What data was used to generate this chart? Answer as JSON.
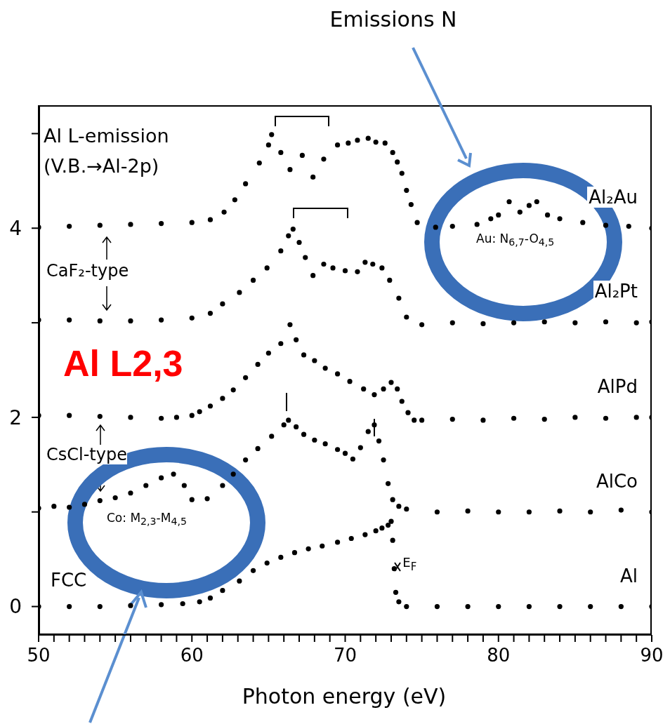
{
  "chart_data": {
    "type": "scatter",
    "xlabel": "Photon energy (eV)",
    "xlim": [
      50,
      90
    ],
    "ylim": [
      -0.3,
      5.3
    ],
    "xticks": [
      50,
      {
        "value": 51,
        "label": null
      },
      {
        "value": 52,
        "label": null
      },
      {
        "value": 53,
        "label": null
      },
      {
        "value": 54,
        "label": null
      },
      {
        "value": 55,
        "label": null
      },
      {
        "value": 56,
        "label": null
      },
      {
        "value": 57,
        "label": null
      },
      {
        "value": 58,
        "label": null
      },
      {
        "value": 59,
        "label": null
      },
      60,
      {
        "value": 61,
        "label": null
      },
      {
        "value": 62,
        "label": null
      },
      {
        "value": 63,
        "label": null
      },
      {
        "value": 64,
        "label": null
      },
      {
        "value": 65,
        "label": null
      },
      {
        "value": 66,
        "label": null
      },
      {
        "value": 67,
        "label": null
      },
      {
        "value": 68,
        "label": null
      },
      {
        "value": 69,
        "label": null
      },
      70,
      {
        "value": 71,
        "label": null
      },
      {
        "value": 72,
        "label": null
      },
      {
        "value": 73,
        "label": null
      },
      {
        "value": 74,
        "label": null
      },
      {
        "value": 75,
        "label": null
      },
      {
        "value": 76,
        "label": null
      },
      {
        "value": 77,
        "label": null
      },
      {
        "value": 78,
        "label": null
      },
      {
        "value": 79,
        "label": null
      },
      80,
      {
        "value": 81,
        "label": null
      },
      {
        "value": 82,
        "label": null
      },
      {
        "value": 83,
        "label": null
      },
      {
        "value": 84,
        "label": null
      },
      {
        "value": 85,
        "label": null
      },
      {
        "value": 86,
        "label": null
      },
      {
        "value": 87,
        "label": null
      },
      {
        "value": 88,
        "label": null
      },
      {
        "value": 89,
        "label": null
      },
      90
    ],
    "yticks": [
      0,
      {
        "value": 1,
        "label": null
      },
      2,
      {
        "value": 3,
        "label": null
      },
      4,
      {
        "value": 5,
        "label": null
      }
    ],
    "grid": false,
    "marker": "circle",
    "series": [
      {
        "name": "Al₂Au",
        "color": "#000000",
        "x": [
          50,
          52,
          54,
          56,
          58,
          60,
          61.2,
          62.1,
          62.8,
          63.5,
          64.4,
          65,
          65.2,
          65.8,
          66.4,
          67.2,
          67.9,
          68.6,
          69.5,
          70.2,
          70.8,
          71.5,
          72,
          72.6,
          73.1,
          73.4,
          73.7,
          74,
          74.3,
          74.7,
          75.9,
          77,
          78.6,
          79.5,
          80,
          80.7,
          81.4,
          82,
          82.5,
          83.2,
          84,
          85.5,
          87,
          88.5,
          90
        ],
        "values": [
          4.01,
          4.02,
          4.03,
          4.04,
          4.05,
          4.06,
          4.09,
          4.17,
          4.3,
          4.47,
          4.69,
          4.88,
          4.99,
          4.8,
          4.62,
          4.77,
          4.54,
          4.73,
          4.88,
          4.9,
          4.93,
          4.95,
          4.91,
          4.9,
          4.8,
          4.7,
          4.58,
          4.4,
          4.25,
          4.06,
          4.01,
          4.02,
          4.04,
          4.1,
          4.14,
          4.28,
          4.17,
          4.24,
          4.28,
          4.14,
          4.1,
          4.06,
          4.03,
          4.02,
          4.0
        ]
      },
      {
        "name": "Al₂Pt",
        "color": "#000000",
        "x": [
          50,
          52,
          54,
          56,
          58,
          60,
          61.2,
          62,
          63.1,
          64,
          64.9,
          65.8,
          66.3,
          66.6,
          67,
          67.4,
          67.9,
          68.6,
          69.2,
          70,
          70.8,
          71.3,
          71.8,
          72.4,
          72.9,
          73.5,
          74,
          75,
          77,
          79,
          81,
          83,
          85,
          87,
          89,
          90
        ],
        "values": [
          3.03,
          3.03,
          3.02,
          3.02,
          3.03,
          3.05,
          3.1,
          3.2,
          3.32,
          3.45,
          3.58,
          3.76,
          3.92,
          3.99,
          3.85,
          3.69,
          3.5,
          3.62,
          3.58,
          3.55,
          3.54,
          3.64,
          3.62,
          3.58,
          3.45,
          3.26,
          3.06,
          2.98,
          3.0,
          2.99,
          3.0,
          3.01,
          3.0,
          3.01,
          3.0,
          3.01
        ]
      },
      {
        "name": "AlPd",
        "color": "#000000",
        "x": [
          50,
          52,
          54,
          56,
          58,
          59,
          60,
          60.5,
          61.2,
          62,
          62.7,
          63.5,
          64.3,
          65,
          65.8,
          66.4,
          66.8,
          67.3,
          68,
          68.7,
          69.5,
          70.3,
          71.2,
          71.9,
          72.5,
          73,
          73.4,
          73.7,
          74.1,
          74.5,
          75,
          77,
          79,
          81,
          83,
          85,
          87,
          89,
          90
        ],
        "values": [
          2.02,
          2.02,
          2.01,
          2.0,
          1.99,
          2.0,
          2.02,
          2.06,
          2.12,
          2.2,
          2.29,
          2.42,
          2.56,
          2.68,
          2.78,
          2.98,
          2.82,
          2.66,
          2.6,
          2.52,
          2.46,
          2.38,
          2.3,
          2.24,
          2.3,
          2.37,
          2.3,
          2.17,
          2.05,
          1.97,
          1.97,
          1.98,
          1.97,
          1.99,
          1.98,
          2.0,
          1.99,
          2.0,
          2.0
        ]
      },
      {
        "name": "AlCo",
        "color": "#000000",
        "x": [
          50,
          51,
          52,
          53,
          54,
          55,
          56,
          57,
          58,
          58.8,
          59.5,
          60,
          61,
          62,
          62.7,
          63.5,
          64.3,
          65.2,
          66,
          66.3,
          66.8,
          67.3,
          68,
          68.7,
          69.5,
          70,
          70.5,
          71,
          71.5,
          71.9,
          72.2,
          72.5,
          72.8,
          73.1,
          73.5,
          74,
          76,
          78,
          80,
          82,
          84,
          86,
          88,
          90
        ],
        "values": [
          1.04,
          1.06,
          1.05,
          1.08,
          1.12,
          1.15,
          1.2,
          1.28,
          1.36,
          1.4,
          1.28,
          1.13,
          1.14,
          1.28,
          1.4,
          1.55,
          1.67,
          1.8,
          1.92,
          1.97,
          1.9,
          1.82,
          1.76,
          1.72,
          1.66,
          1.62,
          1.56,
          1.68,
          1.85,
          1.92,
          1.75,
          1.55,
          1.3,
          1.13,
          1.06,
          1.03,
          1.0,
          1.01,
          1.0,
          1.0,
          1.01,
          1.0,
          1.02,
          1.0
        ]
      },
      {
        "name": "Al",
        "color": "#000000",
        "x": [
          50,
          52,
          54,
          56,
          58,
          59.4,
          60.5,
          61.2,
          62,
          63.1,
          64,
          64.9,
          65.8,
          66.7,
          67.6,
          68.5,
          69.5,
          70.4,
          71.3,
          72,
          72.4,
          72.8,
          73,
          73.1,
          73.2,
          73.3,
          73.5,
          74,
          76,
          78,
          80,
          82,
          84,
          86,
          88,
          90
        ],
        "values": [
          0,
          0,
          0,
          0.01,
          0.02,
          0.03,
          0.05,
          0.09,
          0.17,
          0.27,
          0.38,
          0.46,
          0.52,
          0.57,
          0.61,
          0.64,
          0.68,
          0.72,
          0.76,
          0.8,
          0.83,
          0.86,
          0.9,
          0.7,
          0.4,
          0.15,
          0.05,
          0,
          0,
          0,
          0,
          0,
          0,
          0,
          0,
          0
        ]
      }
    ],
    "annotations": [
      "Emissions N",
      "Al L-emission\n(V.B.→Al-2p)",
      "CaF₂-type",
      "CsCl-type",
      "FCC",
      "Al L2,3",
      "Au: N$_{6,7}$-O$_{4,5}$",
      "Co: M$_{2,3}$-M$_{4,5}$",
      {
        "text": "E$_{F}$",
        "x": 73.2,
        "y": 0.4
      }
    ]
  }
}
